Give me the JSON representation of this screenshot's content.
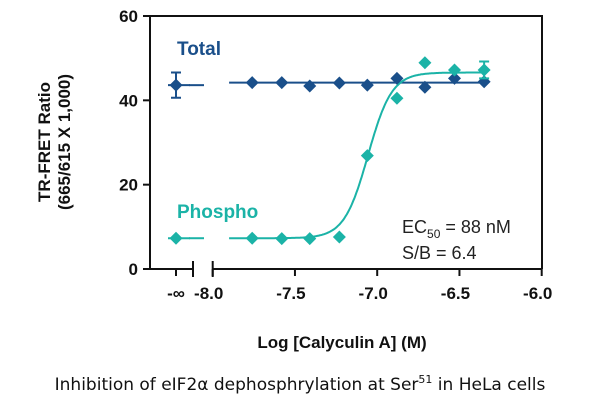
{
  "chart_data": {
    "type": "scatter",
    "xlabel": "Log [Calyculin A] (M)",
    "ylabel_line1": "TR-FRET Ratio",
    "ylabel_line2": "(665/615 X 1,000)",
    "xlim": [
      -8.0,
      -6.0
    ],
    "ylim": [
      0,
      60
    ],
    "x_ticks": [
      "-8.0",
      "-7.5",
      "-7.0",
      "-6.5",
      "-6.0"
    ],
    "x_tick_values": [
      -8.0,
      -7.5,
      -7.0,
      -6.5,
      -6.0
    ],
    "x_break_label": "-∞",
    "y_ticks": [
      "0",
      "20",
      "40",
      "60"
    ],
    "y_tick_values": [
      0,
      20,
      40,
      60
    ],
    "grid": false,
    "x": [
      -7.76,
      -7.58,
      -7.41,
      -7.23,
      -7.06,
      -6.88,
      -6.71,
      -6.53,
      -6.35
    ],
    "series": [
      {
        "name": "Total",
        "color": "#1a4f8a",
        "neg_inf_value": 43.6,
        "neg_inf_error": 3.0,
        "values": [
          44.2,
          44.2,
          43.4,
          44.1,
          43.6,
          45.2,
          43.1,
          45.2,
          44.4
        ],
        "fit": {
          "bottom": 44.2,
          "top": 44.2,
          "log_ec50": -7.06,
          "hill": 1
        }
      },
      {
        "name": "Phospho",
        "color": "#1bb3a7",
        "neg_inf_value": 7.3,
        "values": [
          7.3,
          7.2,
          7.2,
          7.6,
          26.9,
          40.5,
          48.9,
          47.2,
          47.2
        ],
        "last_error": 2.0,
        "fit": {
          "bottom": 7.3,
          "top": 46.6,
          "log_ec50": -7.056,
          "hill": 6
        }
      }
    ],
    "annotations": {
      "ec50_prefix": "EC",
      "ec50_sub": "50",
      "ec50_suffix": " = 88 nM",
      "sb": "S/B = 6.4"
    },
    "caption": {
      "main": "Inhibition of eIF2α dephosphrylation at Ser",
      "sup": "51",
      "rest": " in HeLa cells"
    }
  }
}
